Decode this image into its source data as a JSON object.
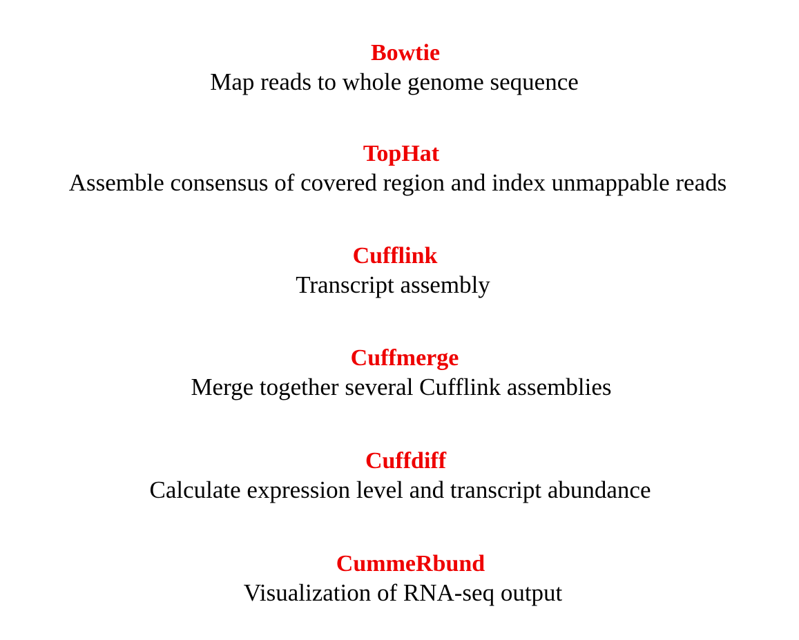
{
  "colors": {
    "tool_name": "#ee0000",
    "description": "#000000",
    "background": "#ffffff"
  },
  "steps": [
    {
      "name": "Bowtie",
      "description": "Map reads to whole genome sequence"
    },
    {
      "name": "TopHat",
      "description": "Assemble consensus of covered region and index unmappable reads"
    },
    {
      "name": "Cufflink",
      "description": "Transcript assembly"
    },
    {
      "name": "Cuffmerge",
      "description": "Merge together several Cufflink assemblies"
    },
    {
      "name": "Cuffdiff",
      "description": "Calculate expression level and transcript abundance"
    },
    {
      "name": "CummeRbund",
      "description": "Visualization of RNA-seq output"
    }
  ]
}
